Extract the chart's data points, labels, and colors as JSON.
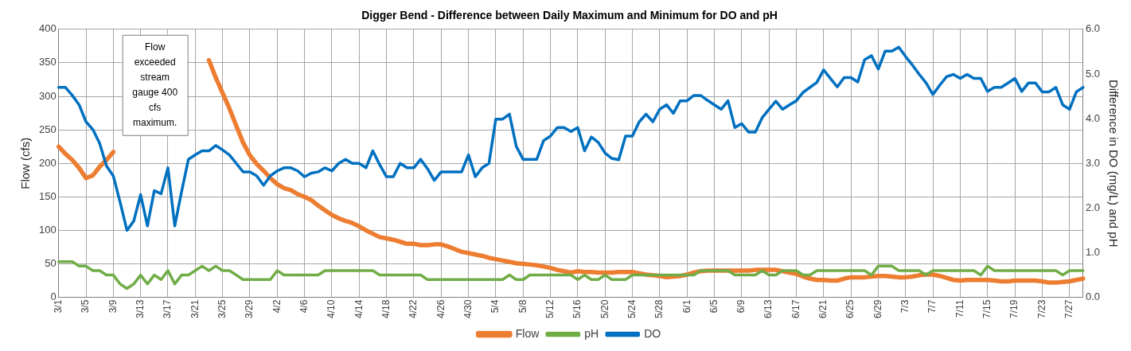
{
  "chart_data": {
    "type": "line",
    "title": "Digger Bend - Difference between Daily Maximum and Minimum for DO and pH",
    "ylabel": "Flow (cfs)",
    "y2label": "Difference in DO (mg/L) and pH",
    "categories": [
      "3/1",
      null,
      null,
      null,
      "3/5",
      null,
      null,
      null,
      "3/9",
      null,
      null,
      null,
      "3/13",
      null,
      null,
      null,
      "3/17",
      null,
      null,
      null,
      "3/21",
      null,
      null,
      null,
      "3/25",
      null,
      null,
      null,
      "3/29",
      null,
      null,
      null,
      "4/2",
      null,
      null,
      null,
      "4/6",
      null,
      null,
      null,
      "4/10",
      null,
      null,
      null,
      "4/14",
      null,
      null,
      null,
      "4/18",
      null,
      null,
      null,
      "4/22",
      null,
      null,
      null,
      "4/26",
      null,
      null,
      null,
      "4/30",
      null,
      null,
      null,
      "5/4",
      null,
      null,
      null,
      "5/8",
      null,
      null,
      null,
      "5/12",
      null,
      null,
      null,
      "5/16",
      null,
      null,
      null,
      "5/20",
      null,
      null,
      null,
      "5/24",
      null,
      null,
      null,
      "5/28",
      null,
      null,
      null,
      "6/1",
      null,
      null,
      null,
      "6/5",
      null,
      null,
      null,
      "6/9",
      null,
      null,
      null,
      "6/13",
      null,
      null,
      null,
      "6/17",
      null,
      null,
      null,
      "6/21",
      null,
      null,
      null,
      "6/25",
      null,
      null,
      null,
      "6/29",
      null,
      null,
      null,
      "7/3",
      null,
      null,
      null,
      "7/7",
      null,
      null,
      null,
      "7/11",
      null,
      null,
      null,
      "7/15",
      null,
      null,
      null,
      "7/19",
      null,
      null,
      null,
      "7/23",
      null,
      null,
      null,
      "7/27",
      null,
      null
    ],
    "series": [
      {
        "name": "Flow",
        "color": "#ed7d31",
        "values": [
          225,
          214,
          205,
          193,
          178,
          182,
          195,
          205,
          217,
          null,
          null,
          null,
          null,
          null,
          null,
          null,
          null,
          null,
          null,
          null,
          null,
          null,
          354,
          328,
          305,
          282,
          256,
          231,
          212,
          199,
          189,
          178,
          169,
          163,
          160,
          154,
          150,
          145,
          137,
          130,
          123,
          118,
          114,
          111,
          106,
          100,
          95,
          90,
          88,
          86,
          83,
          80,
          80,
          78,
          78,
          79,
          79,
          76,
          72,
          68,
          66,
          64,
          62,
          59,
          57,
          55,
          53,
          51,
          50,
          49,
          48,
          46,
          44,
          41,
          39,
          37,
          39,
          38,
          38,
          37,
          37,
          37,
          38,
          38,
          38,
          36,
          34,
          33,
          32,
          30,
          31,
          32,
          34,
          37,
          39,
          40,
          40,
          40,
          40,
          40,
          40,
          40,
          41,
          41,
          41,
          41,
          39,
          37,
          35,
          31,
          28,
          26,
          26,
          25,
          25,
          28,
          30,
          30,
          30,
          31,
          32,
          32,
          31,
          30,
          30,
          31,
          33,
          34,
          34,
          32,
          29,
          26,
          25,
          26,
          26,
          26,
          26,
          25,
          24,
          24,
          25,
          25,
          25,
          25,
          24,
          22,
          22,
          23,
          24,
          26,
          28
        ]
      },
      {
        "name": "pH",
        "color": "#70ad47",
        "axis": "y2",
        "values": [
          0.8,
          0.8,
          0.8,
          0.7,
          0.7,
          0.6,
          0.6,
          0.5,
          0.5,
          0.3,
          0.2,
          0.3,
          0.5,
          0.3,
          0.5,
          0.4,
          0.6,
          0.3,
          0.5,
          0.5,
          0.6,
          0.7,
          0.6,
          0.7,
          0.6,
          0.6,
          0.5,
          0.4,
          0.4,
          0.4,
          0.4,
          0.4,
          0.6,
          0.5,
          0.5,
          0.5,
          0.5,
          0.5,
          0.5,
          0.6,
          0.6,
          0.6,
          0.6,
          0.6,
          0.6,
          0.6,
          0.6,
          0.5,
          0.5,
          0.5,
          0.5,
          0.5,
          0.5,
          0.5,
          0.4,
          0.4,
          0.4,
          0.4,
          0.4,
          0.4,
          0.4,
          0.4,
          0.4,
          0.4,
          0.4,
          0.4,
          0.5,
          0.4,
          0.4,
          0.5,
          0.5,
          0.5,
          0.5,
          0.5,
          0.5,
          0.5,
          0.4,
          0.5,
          0.4,
          0.4,
          0.5,
          0.4,
          0.4,
          0.4,
          0.5,
          0.5,
          0.5,
          0.5,
          0.5,
          0.5,
          0.5,
          0.5,
          0.5,
          0.5,
          0.6,
          0.6,
          0.6,
          0.6,
          0.6,
          0.5,
          0.5,
          0.5,
          0.5,
          0.6,
          0.5,
          0.5,
          0.6,
          0.6,
          0.6,
          0.5,
          0.5,
          0.6,
          0.6,
          0.6,
          0.6,
          0.6,
          0.6,
          0.6,
          0.6,
          0.5,
          0.7,
          0.7,
          0.7,
          0.6,
          0.6,
          0.6,
          0.6,
          0.5,
          0.6,
          0.6,
          0.6,
          0.6,
          0.6,
          0.6,
          0.6,
          0.5,
          0.7,
          0.6,
          0.6,
          0.6,
          0.6,
          0.6,
          0.6,
          0.6,
          0.6,
          0.6,
          0.6,
          0.5,
          0.6,
          0.6,
          0.6
        ]
      },
      {
        "name": "DO",
        "color": "#0070c0",
        "axis": "y2",
        "values": [
          4.7,
          4.7,
          4.52,
          4.31,
          3.93,
          3.76,
          3.45,
          2.94,
          2.72,
          2.13,
          1.5,
          1.71,
          2.3,
          1.6,
          2.39,
          2.32,
          2.9,
          1.6,
          2.37,
          3.09,
          3.19,
          3.28,
          3.28,
          3.4,
          3.3,
          3.19,
          3.0,
          2.81,
          2.81,
          2.72,
          2.51,
          2.72,
          2.83,
          2.9,
          2.9,
          2.83,
          2.7,
          2.78,
          2.81,
          2.9,
          2.83,
          3.0,
          3.09,
          3.0,
          3.0,
          2.9,
          3.28,
          2.97,
          2.7,
          2.7,
          3.0,
          2.9,
          2.9,
          3.09,
          2.88,
          2.62,
          2.81,
          2.81,
          2.81,
          2.81,
          3.19,
          2.7,
          2.9,
          3.0,
          3.99,
          3.99,
          4.1,
          3.38,
          3.09,
          3.09,
          3.09,
          3.51,
          3.61,
          3.8,
          3.8,
          3.71,
          3.8,
          3.28,
          3.59,
          3.47,
          3.23,
          3.11,
          3.08,
          3.61,
          3.61,
          3.93,
          4.1,
          3.93,
          4.21,
          4.31,
          4.12,
          4.4,
          4.4,
          4.52,
          4.52,
          4.41,
          4.31,
          4.21,
          4.4,
          3.8,
          3.89,
          3.7,
          3.7,
          4.02,
          4.21,
          4.39,
          4.21,
          4.31,
          4.4,
          4.59,
          4.7,
          4.81,
          5.09,
          4.9,
          4.71,
          4.92,
          4.92,
          4.82,
          5.32,
          5.41,
          5.11,
          5.51,
          5.51,
          5.6,
          5.39,
          5.2,
          4.99,
          4.8,
          4.54,
          4.75,
          4.94,
          4.99,
          4.9,
          4.99,
          4.9,
          4.9,
          4.61,
          4.7,
          4.7,
          4.8,
          4.9,
          4.61,
          4.8,
          4.8,
          4.6,
          4.6,
          4.7,
          4.31,
          4.21,
          4.6,
          4.7
        ]
      }
    ],
    "ylim": [
      0,
      400
    ],
    "yticks": [
      0,
      50,
      100,
      150,
      200,
      250,
      300,
      350,
      400
    ],
    "y2lim": [
      0,
      6
    ],
    "y2ticks": [
      {
        "value": 0,
        "label": "0.0"
      },
      {
        "value": 1,
        "label": "1.0"
      },
      {
        "value": 2,
        "label": "2.0"
      },
      {
        "value": 3,
        "label": "3.0"
      },
      {
        "value": 4,
        "label": "4.0"
      },
      {
        "value": 5,
        "label": "5.0"
      },
      {
        "value": 6,
        "label": "6.0"
      }
    ],
    "grid": true,
    "legend": "bottom",
    "marker": "none",
    "line_style": "solid",
    "annotations": [
      "Flow exceeded stream gauge 400 cfs maximum."
    ]
  }
}
